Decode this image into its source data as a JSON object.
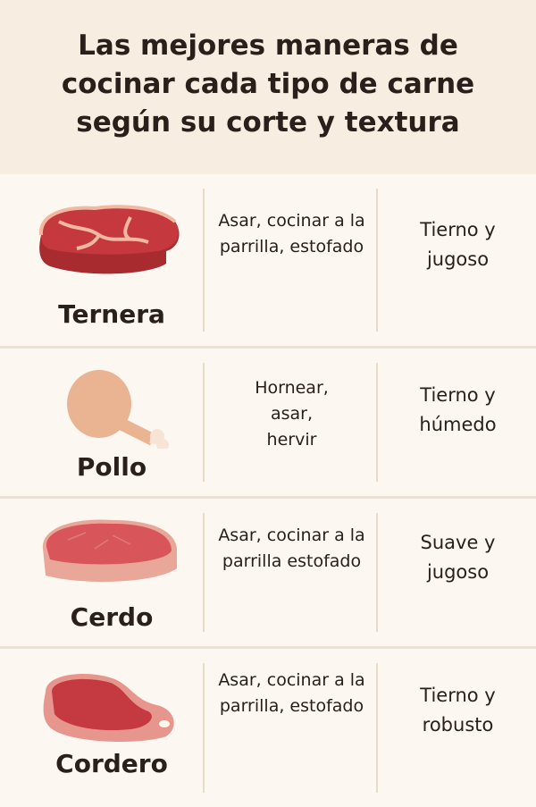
{
  "title": "Las mejores maneras de cocinar cada tipo de carne según su corte y textura",
  "rows": [
    {
      "name": "Ternera",
      "icon": "beef-steak-icon",
      "methods": "Asar, cocinar a la parrilla, estofado",
      "texture": "Tierno y jugoso"
    },
    {
      "name": "Pollo",
      "icon": "chicken-leg-icon",
      "methods": "Hornear, asar, hervir",
      "texture": "Tierno y húmedo"
    },
    {
      "name": "Cerdo",
      "icon": "pork-chop-icon",
      "methods": "Asar, cocinar a la parrilla estofado",
      "texture": "Suave y jugoso"
    },
    {
      "name": "Cordero",
      "icon": "lamb-chop-icon",
      "methods": "Asar, cocinar a la parrilla, estofado",
      "texture": "Tierno y robusto"
    }
  ],
  "colors": {
    "meat_red": "#b8343a",
    "fat": "#f2b8a0",
    "chicken": "#eab493",
    "background": "#fbf6ee"
  }
}
